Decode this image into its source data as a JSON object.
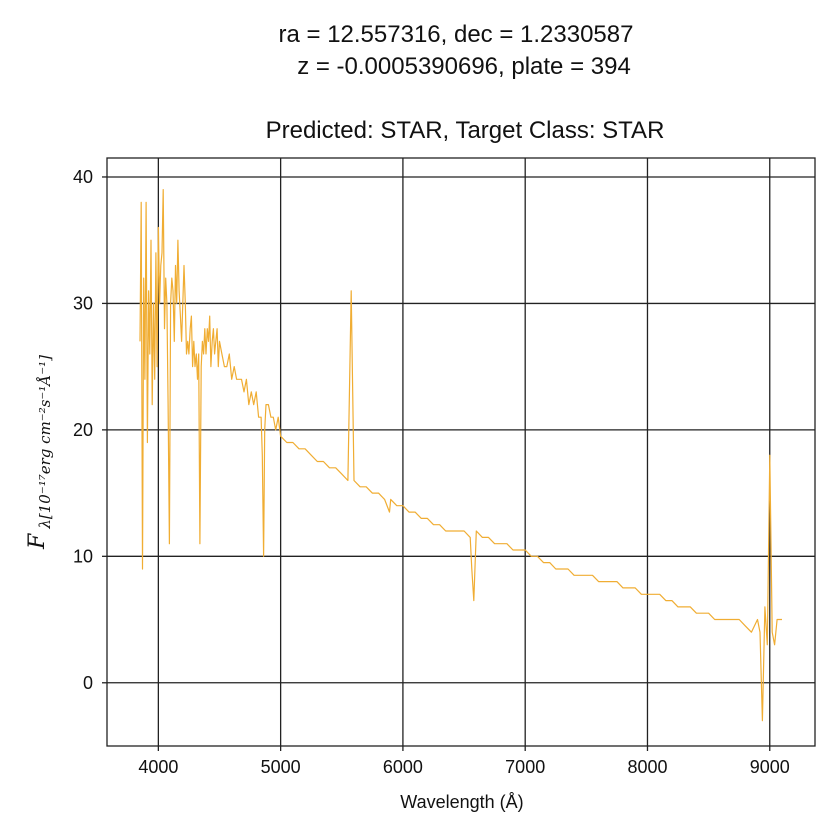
{
  "figure": {
    "title_line1": "ra = 12.557316, dec = 1.2330587",
    "title_line2": "z = -0.0005390696, plate = 394",
    "subtitle": "Predicted: STAR, Target Class: STAR"
  },
  "chart_data": {
    "type": "line",
    "title": "ra = 12.557316, dec = 1.2330587 z = -0.0005390696, plate = 394",
    "subtitle": "Predicted: STAR, Target Class: STAR",
    "xlabel": "Wavelength (Å)",
    "ylabel": "Fλ[10⁻¹⁷ erg cm⁻² s⁻¹ Å⁻¹]",
    "ylabel_main": "F",
    "ylabel_sub": "λ[10⁻¹⁷erg cm⁻²s⁻¹Å⁻¹]",
    "xlim": [
      3580,
      9370
    ],
    "ylim": [
      -5,
      41.5
    ],
    "x_ticks": [
      4000,
      5000,
      6000,
      7000,
      8000,
      9000
    ],
    "y_ticks": [
      0,
      10,
      20,
      30,
      40
    ],
    "x_tick_labels": [
      "4000",
      "5000",
      "6000",
      "7000",
      "8000",
      "9000"
    ],
    "y_tick_labels": [
      "0",
      "10",
      "20",
      "30",
      "40"
    ],
    "grid": true,
    "line_color": "#f0ad33",
    "series": [
      {
        "x": [
          3850,
          3860,
          3870,
          3880,
          3890,
          3900,
          3910,
          3920,
          3930,
          3940,
          3950,
          3960,
          3970,
          3980,
          3990,
          4000,
          4010,
          4020,
          4030,
          4040,
          4050,
          4060,
          4070,
          4080,
          4090,
          4100,
          4110,
          4120,
          4130,
          4140,
          4150,
          4160,
          4170,
          4180,
          4190,
          4200,
          4210,
          4220,
          4230,
          4240,
          4250,
          4260,
          4270,
          4280,
          4290,
          4300,
          4310,
          4320,
          4330,
          4340,
          4350,
          4360,
          4370,
          4380,
          4390,
          4400,
          4410,
          4420,
          4430,
          4440,
          4450,
          4460,
          4470,
          4480,
          4490,
          4500,
          4520,
          4540,
          4560,
          4580,
          4600,
          4620,
          4640,
          4660,
          4680,
          4700,
          4720,
          4740,
          4760,
          4780,
          4800,
          4820,
          4840,
          4850,
          4861,
          4870,
          4880,
          4900,
          4920,
          4940,
          4960,
          4980,
          5000,
          5050,
          5100,
          5150,
          5200,
          5250,
          5300,
          5350,
          5400,
          5450,
          5500,
          5550,
          5577,
          5600,
          5650,
          5700,
          5750,
          5800,
          5850,
          5890,
          5900,
          5950,
          6000,
          6050,
          6100,
          6150,
          6200,
          6250,
          6300,
          6350,
          6400,
          6450,
          6500,
          6550,
          6563,
          6580,
          6600,
          6650,
          6700,
          6750,
          6800,
          6850,
          6900,
          6950,
          7000,
          7050,
          7100,
          7150,
          7200,
          7250,
          7300,
          7350,
          7400,
          7450,
          7500,
          7550,
          7600,
          7650,
          7700,
          7750,
          7800,
          7850,
          7900,
          7950,
          8000,
          8050,
          8100,
          8150,
          8200,
          8250,
          8300,
          8350,
          8400,
          8450,
          8500,
          8550,
          8600,
          8650,
          8700,
          8750,
          8800,
          8850,
          8900,
          8920,
          8940,
          8960,
          8980,
          9000,
          9020,
          9040,
          9060,
          9080,
          9100
        ],
        "y": [
          27,
          38,
          9,
          32,
          24,
          38,
          19,
          31,
          26,
          35,
          22,
          30,
          24,
          34,
          25,
          36,
          30,
          33,
          34,
          39,
          28,
          32,
          30,
          22,
          11,
          30,
          32,
          31,
          27,
          33,
          30,
          35,
          31,
          29,
          27,
          30,
          33,
          30,
          26,
          27,
          26,
          28,
          29,
          25,
          27,
          25,
          26,
          24,
          26,
          11,
          25,
          27,
          26,
          28,
          26,
          28,
          27,
          29,
          25,
          27,
          28,
          26,
          27,
          28,
          25,
          27,
          26,
          25,
          25,
          26,
          24,
          25,
          24,
          24,
          24,
          23,
          24,
          22,
          23,
          22,
          23,
          21,
          21,
          18,
          10,
          20,
          22,
          22,
          21,
          21,
          20,
          21,
          19.5,
          19,
          19,
          18.5,
          18.5,
          18,
          17.5,
          17.5,
          17,
          17,
          16.5,
          16,
          31,
          16,
          15.5,
          15.5,
          15,
          15,
          14.5,
          13.5,
          14.5,
          14,
          14,
          13.5,
          13.5,
          13,
          13,
          12.5,
          12.5,
          12,
          12,
          12,
          12,
          11.5,
          9,
          6.5,
          12,
          11.5,
          11.5,
          11,
          11,
          11,
          10.5,
          10.5,
          10.5,
          10,
          10,
          9.5,
          9.5,
          9,
          9,
          9,
          8.5,
          8.5,
          8.5,
          8.5,
          8,
          8,
          8,
          8,
          7.5,
          7.5,
          7.5,
          7,
          7,
          7,
          7,
          6.5,
          6.5,
          6,
          6,
          6,
          5.5,
          5.5,
          5.5,
          5,
          5,
          5,
          5,
          5,
          4.5,
          4,
          5,
          4,
          -3,
          6,
          3,
          18,
          4,
          3,
          5,
          5,
          5
        ]
      }
    ]
  }
}
